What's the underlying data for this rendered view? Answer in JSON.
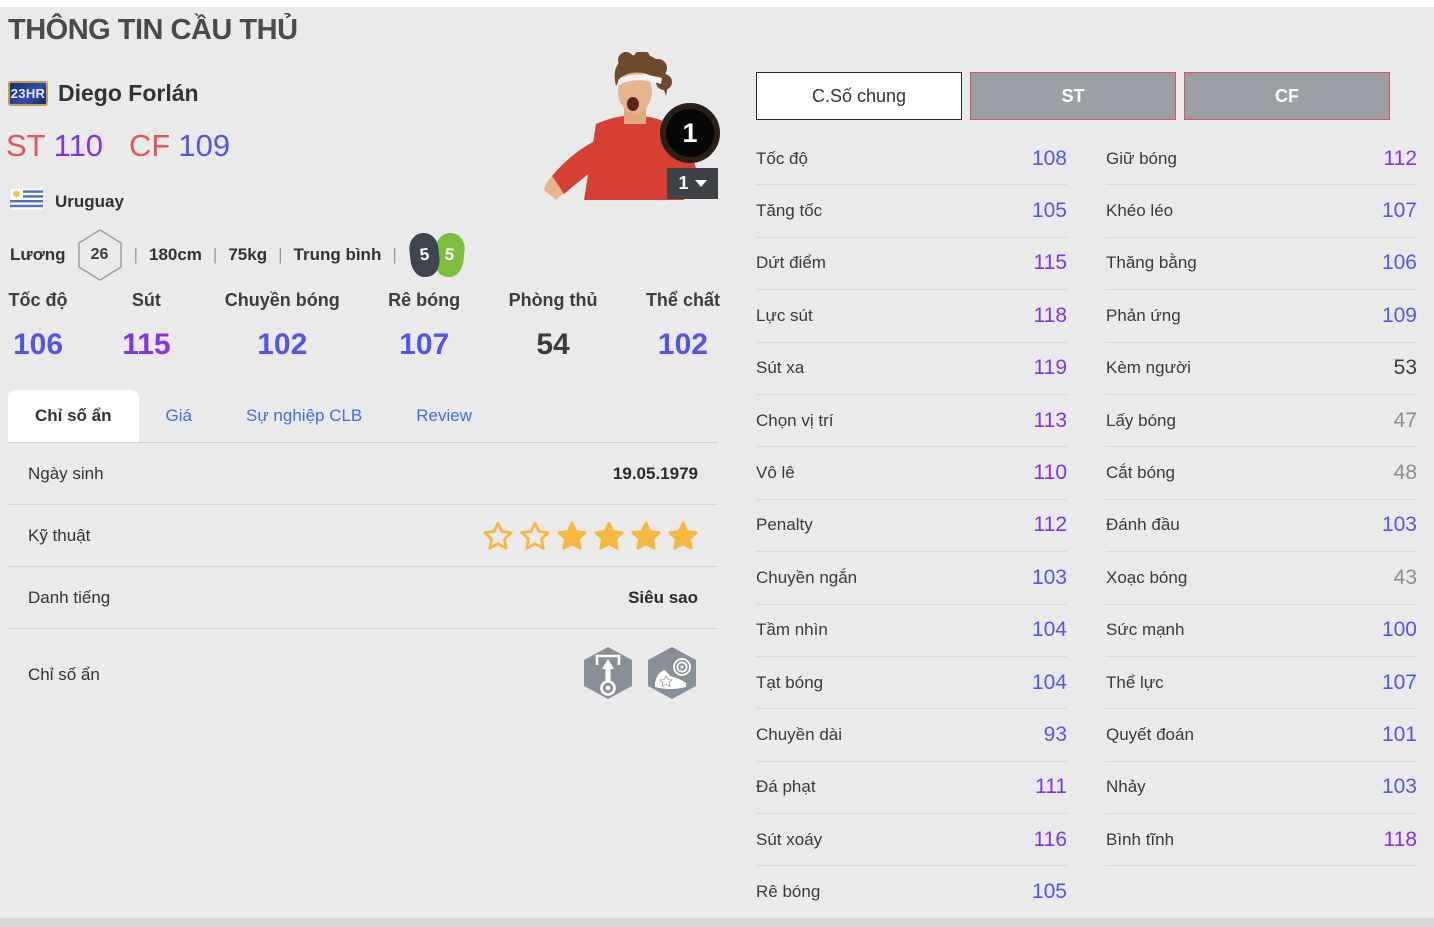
{
  "page": {
    "title": "THÔNG TIN CẦU THỦ"
  },
  "player": {
    "badge": "23HR",
    "name": "Diego Forlán",
    "positions": [
      {
        "pos": "ST",
        "rating": "110",
        "tone": "purple"
      },
      {
        "pos": "CF",
        "rating": "109",
        "tone": "blue"
      }
    ],
    "nation": "Uruguay",
    "salary_label": "Lương",
    "salary": "26",
    "height": "180cm",
    "weight": "75kg",
    "form": "Trung bình",
    "separator": "|",
    "weak_foot": "5",
    "strong_foot": "5",
    "image_badge": "1",
    "image_select": "1"
  },
  "main_stats": [
    {
      "label": "Tốc độ",
      "value": "106",
      "tone": "blue"
    },
    {
      "label": "Sút",
      "value": "115",
      "tone": "purple"
    },
    {
      "label": "Chuyền bóng",
      "value": "102",
      "tone": "blue"
    },
    {
      "label": "Rê bóng",
      "value": "107",
      "tone": "blue"
    },
    {
      "label": "Phòng thủ",
      "value": "54",
      "tone": "dark"
    },
    {
      "label": "Thể chất",
      "value": "102",
      "tone": "blue"
    }
  ],
  "tabs": [
    {
      "label": "Chỉ số ẩn",
      "active": true
    },
    {
      "label": "Giá"
    },
    {
      "label": "Sự nghiệp CLB"
    },
    {
      "label": "Review"
    }
  ],
  "info_rows": {
    "birth": {
      "label": "Ngày sinh",
      "value": "19.05.1979"
    },
    "skill": {
      "label": "Kỹ thuật",
      "stars": [
        false,
        false,
        true,
        true,
        true,
        true
      ]
    },
    "fame": {
      "label": "Danh tiếng",
      "value": "Siêu sao"
    },
    "hidden": {
      "label": "Chỉ số ẩn",
      "icons": [
        "goal-poacher-icon",
        "finesse-shot-icon"
      ]
    }
  },
  "right_panel": {
    "buttons": [
      {
        "label": "C.Số chung",
        "active": true
      },
      {
        "label": "ST"
      },
      {
        "label": "CF"
      }
    ],
    "columns": [
      {
        "stats": [
          {
            "label": "Tốc độ",
            "value": "108",
            "tone": "blue"
          },
          {
            "label": "Tăng tốc",
            "value": "105",
            "tone": "blue"
          },
          {
            "label": "Dứt điểm",
            "value": "115",
            "tone": "purple"
          },
          {
            "label": "Lực sút",
            "value": "118",
            "tone": "purple"
          },
          {
            "label": "Sút xa",
            "value": "119",
            "tone": "purple"
          },
          {
            "label": "Chọn vị trí",
            "value": "113",
            "tone": "purple"
          },
          {
            "label": "Vô lê",
            "value": "110",
            "tone": "purple"
          },
          {
            "label": "Penalty",
            "value": "112",
            "tone": "purple"
          },
          {
            "label": "Chuyền ngắn",
            "value": "103",
            "tone": "blue"
          },
          {
            "label": "Tầm nhìn",
            "value": "104",
            "tone": "blue"
          },
          {
            "label": "Tạt bóng",
            "value": "104",
            "tone": "blue"
          },
          {
            "label": "Chuyền dài",
            "value": "93",
            "tone": "blue"
          },
          {
            "label": "Đá phạt",
            "value": "111",
            "tone": "purple"
          },
          {
            "label": "Sút xoáy",
            "value": "116",
            "tone": "purple"
          },
          {
            "label": "Rê bóng",
            "value": "105",
            "tone": "blue"
          }
        ]
      },
      {
        "stats": [
          {
            "label": "Giữ bóng",
            "value": "112",
            "tone": "purple"
          },
          {
            "label": "Khéo léo",
            "value": "107",
            "tone": "blue"
          },
          {
            "label": "Thăng bằng",
            "value": "106",
            "tone": "blue"
          },
          {
            "label": "Phản ứng",
            "value": "109",
            "tone": "blue"
          },
          {
            "label": "Kèm người",
            "value": "53",
            "tone": "dark"
          },
          {
            "label": "Lấy bóng",
            "value": "47",
            "tone": "gray"
          },
          {
            "label": "Cắt bóng",
            "value": "48",
            "tone": "gray"
          },
          {
            "label": "Đánh đầu",
            "value": "103",
            "tone": "blue"
          },
          {
            "label": "Xoạc bóng",
            "value": "43",
            "tone": "gray"
          },
          {
            "label": "Sức mạnh",
            "value": "100",
            "tone": "blue"
          },
          {
            "label": "Thể lực",
            "value": "107",
            "tone": "blue"
          },
          {
            "label": "Quyết đoán",
            "value": "101",
            "tone": "blue"
          },
          {
            "label": "Nhảy",
            "value": "103",
            "tone": "blue"
          },
          {
            "label": "Bình tĩnh",
            "value": "118",
            "tone": "purple"
          }
        ]
      }
    ]
  },
  "colors": {
    "purple": "#8133e8",
    "blue": "#5355e9",
    "dark": "#3c3c3c",
    "gray": "#8d8d96",
    "position_label": "#e05757",
    "tab_blue": "#3d6de8",
    "button_border_red": "#e0505c",
    "star_gold": "#f5b841"
  }
}
